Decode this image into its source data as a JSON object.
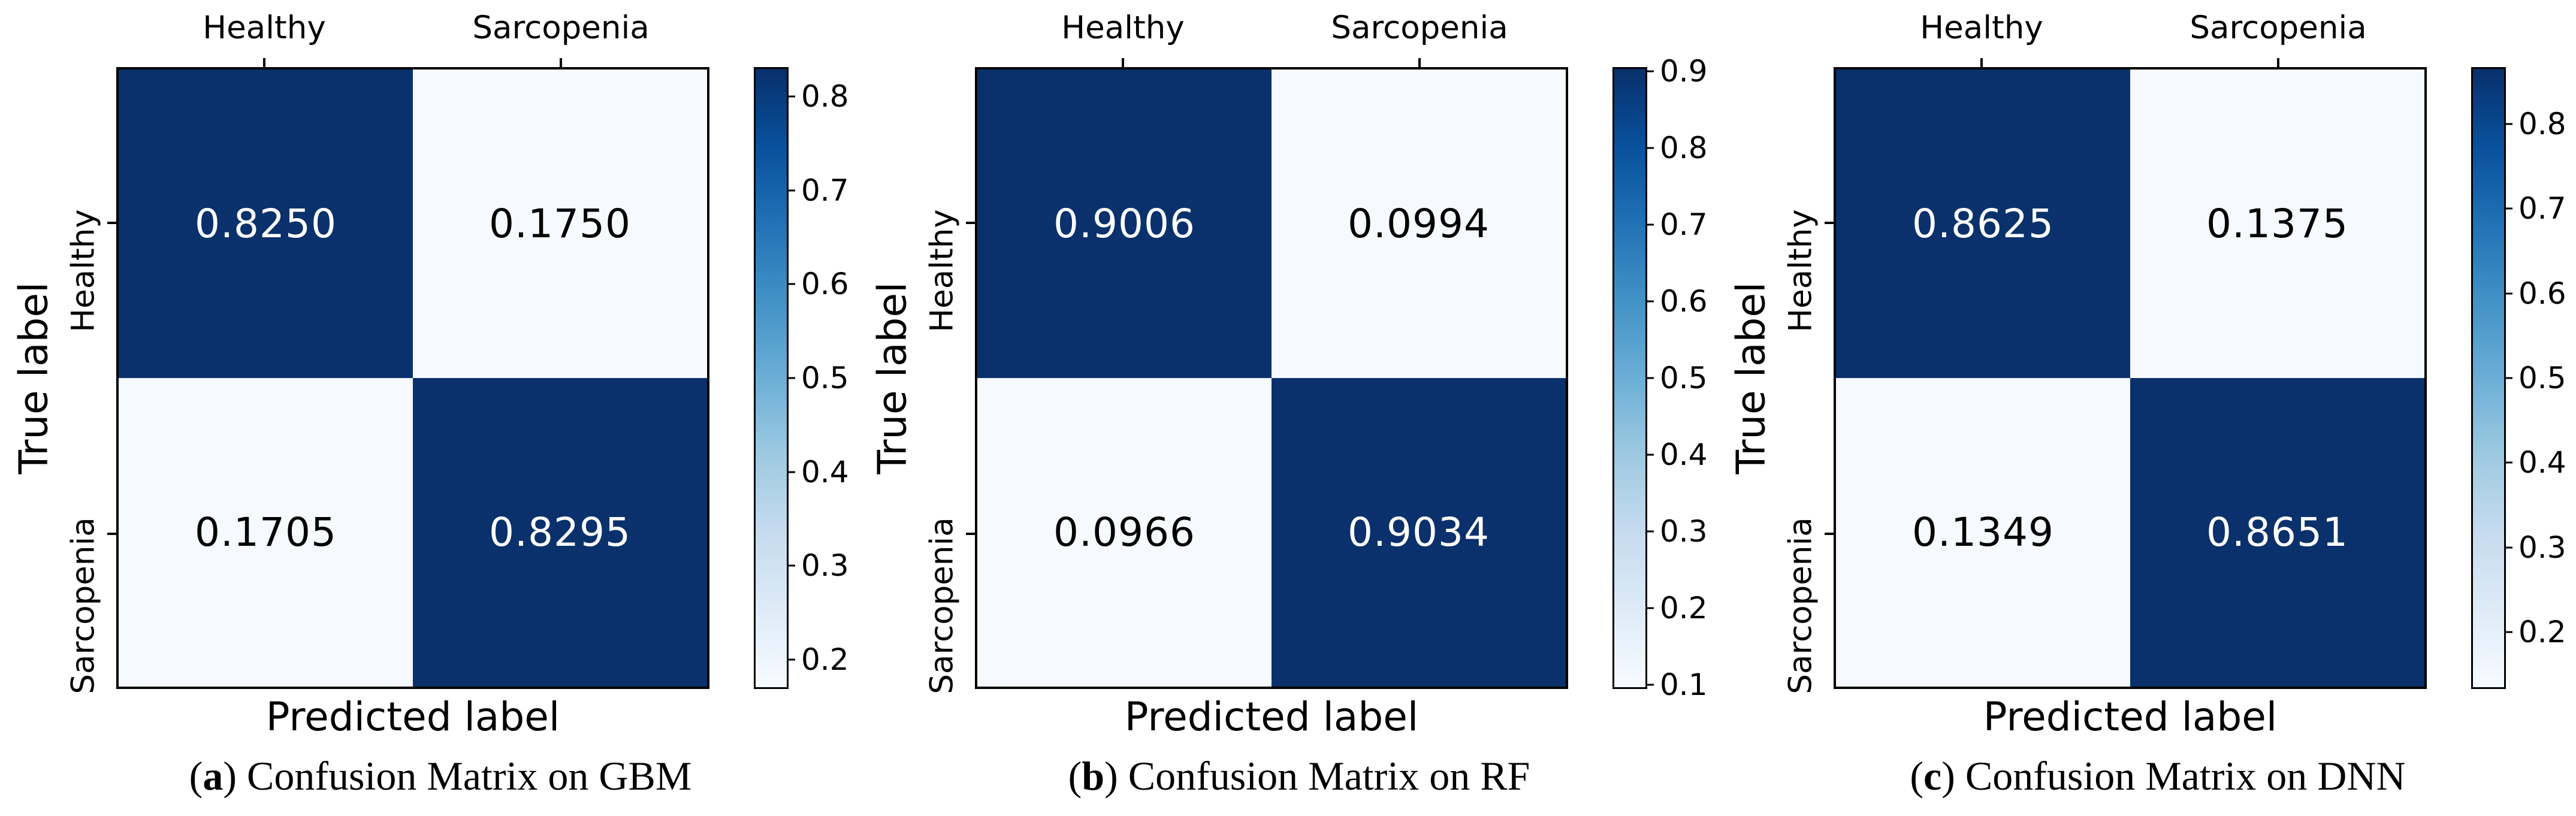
{
  "colors": {
    "cell_dark": "#0a316b",
    "cell_light": "#f6f9fe",
    "text_on_dark": "#ffffff",
    "text_on_light": "#000000",
    "border": "#000000",
    "background": "#ffffff",
    "colormap_stops": [
      "#f7fbff",
      "#deebf7",
      "#c6dbef",
      "#9ecae1",
      "#6baed6",
      "#4292c6",
      "#2171b5",
      "#08519c",
      "#08306b"
    ]
  },
  "chart_data": [
    {
      "type": "heatmap",
      "colormap": "Blues",
      "xlabel": "Predicted label",
      "ylabel": "True label",
      "x_tick_labels": [
        "Healthy",
        "Sarcopenia"
      ],
      "y_tick_labels": [
        "Healthy",
        "Sarcopenia"
      ],
      "values": [
        [
          0.825,
          0.175
        ],
        [
          0.1705,
          0.8295
        ]
      ],
      "value_labels": [
        [
          "0.8250",
          "0.1750"
        ],
        [
          "0.1705",
          "0.8295"
        ]
      ],
      "colorbar": {
        "vmin": 0.1705,
        "vmax": 0.8295,
        "tick_values": [
          0.2,
          0.3,
          0.4,
          0.5,
          0.6,
          0.7,
          0.8
        ],
        "tick_labels": [
          "0.2",
          "0.3",
          "0.4",
          "0.5",
          "0.6",
          "0.7",
          "0.8"
        ]
      },
      "caption": {
        "open": "(",
        "letter": "a",
        "close": ")",
        "text": " Confusion Matrix on GBM"
      }
    },
    {
      "type": "heatmap",
      "colormap": "Blues",
      "xlabel": "Predicted label",
      "ylabel": "True label",
      "x_tick_labels": [
        "Healthy",
        "Sarcopenia"
      ],
      "y_tick_labels": [
        "Healthy",
        "Sarcopenia"
      ],
      "values": [
        [
          0.9006,
          0.0994
        ],
        [
          0.0966,
          0.9034
        ]
      ],
      "value_labels": [
        [
          "0.9006",
          "0.0994"
        ],
        [
          "0.0966",
          "0.9034"
        ]
      ],
      "colorbar": {
        "vmin": 0.0966,
        "vmax": 0.9034,
        "tick_values": [
          0.1,
          0.2,
          0.3,
          0.4,
          0.5,
          0.6,
          0.7,
          0.8,
          0.9
        ],
        "tick_labels": [
          "0.1",
          "0.2",
          "0.3",
          "0.4",
          "0.5",
          "0.6",
          "0.7",
          "0.8",
          "0.9"
        ]
      },
      "caption": {
        "open": "(",
        "letter": "b",
        "close": ")",
        "text": " Confusion Matrix on RF"
      }
    },
    {
      "type": "heatmap",
      "colormap": "Blues",
      "xlabel": "Predicted label",
      "ylabel": "True label",
      "x_tick_labels": [
        "Healthy",
        "Sarcopenia"
      ],
      "y_tick_labels": [
        "Healthy",
        "Sarcopenia"
      ],
      "values": [
        [
          0.8625,
          0.1375
        ],
        [
          0.1349,
          0.8651
        ]
      ],
      "value_labels": [
        [
          "0.8625",
          "0.1375"
        ],
        [
          "0.1349",
          "0.8651"
        ]
      ],
      "colorbar": {
        "vmin": 0.1349,
        "vmax": 0.8651,
        "tick_values": [
          0.2,
          0.3,
          0.4,
          0.5,
          0.6,
          0.7,
          0.8
        ],
        "tick_labels": [
          "0.2",
          "0.3",
          "0.4",
          "0.5",
          "0.6",
          "0.7",
          "0.8"
        ]
      },
      "caption": {
        "open": "(",
        "letter": "c",
        "close": ")",
        "text": " Confusion Matrix on DNN"
      }
    }
  ]
}
